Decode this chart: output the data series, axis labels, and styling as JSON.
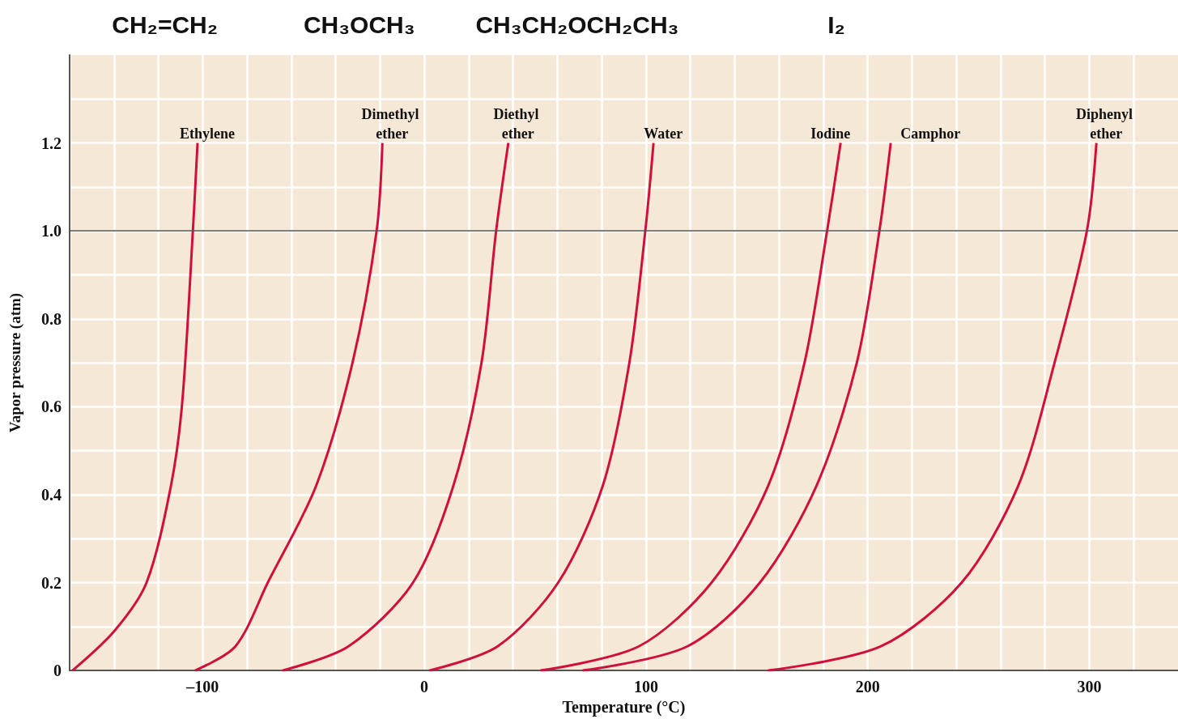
{
  "chart_data": {
    "type": "line",
    "xlabel": "Temperature (°C)",
    "ylabel": "Vapor pressure (atm)",
    "xlim": [
      -160,
      340
    ],
    "ylim": [
      0,
      1.4
    ],
    "xticks": [
      {
        "value": -160,
        "label": null
      },
      {
        "value": -140,
        "label": null
      },
      {
        "value": -120,
        "label": null
      },
      {
        "value": -100,
        "label": "–100"
      },
      {
        "value": -80,
        "label": null
      },
      {
        "value": -60,
        "label": null
      },
      {
        "value": -40,
        "label": null
      },
      {
        "value": -20,
        "label": null
      },
      0,
      {
        "value": 20,
        "label": null
      },
      {
        "value": 40,
        "label": null
      },
      {
        "value": 60,
        "label": null
      },
      {
        "value": 80,
        "label": null
      },
      100,
      {
        "value": 120,
        "label": null
      },
      {
        "value": 140,
        "label": null
      },
      {
        "value": 160,
        "label": null
      },
      {
        "value": 180,
        "label": null
      },
      200,
      {
        "value": 220,
        "label": null
      },
      {
        "value": 240,
        "label": null
      },
      {
        "value": 260,
        "label": null
      },
      {
        "value": 280,
        "label": null
      },
      300,
      {
        "value": 320,
        "label": null
      }
    ],
    "yticks": [
      0,
      {
        "value": 0.1,
        "label": null
      },
      0.2,
      {
        "value": 0.3,
        "label": null
      },
      0.4,
      {
        "value": 0.5,
        "label": null
      },
      0.6,
      {
        "value": 0.7,
        "label": null
      },
      0.8,
      {
        "value": 0.9,
        "label": null
      },
      {
        "value": 1,
        "label": "1.0"
      },
      {
        "value": 1.1,
        "label": null
      },
      1.2,
      {
        "value": 1.3,
        "label": null
      }
    ],
    "grid": true,
    "marker": "none",
    "legend": false,
    "ref_lines": [
      {
        "axis": "y",
        "value": 1,
        "color": "#555555"
      }
    ],
    "annotations": [
      "CH₂=CH₂",
      "CH₃OCH₃",
      "CH₃CH₂OCH₂CH₃",
      "I₂"
    ],
    "series": [
      {
        "name": "Ethylene",
        "color": "#d0103a",
        "x": [
          -158.7,
          -139.8,
          -125.3,
          -114.3,
          -109.2,
          -104.4,
          -102.3
        ],
        "values": [
          0,
          0.09,
          0.2,
          0.42,
          0.61,
          1.0,
          1.2
        ]
      },
      {
        "name": "Dimethyl ether",
        "color": "#d0103a",
        "x": [
          -103.4,
          -85.2,
          -70.6,
          -48.8,
          -32.4,
          -21.5,
          -18.9
        ],
        "values": [
          0,
          0.055,
          0.2,
          0.42,
          0.7,
          1.0,
          1.2
        ]
      },
      {
        "name": "Diethyl ether",
        "color": "#d0103a",
        "x": [
          -64,
          -34.2,
          -5.1,
          13.1,
          25.8,
          32.4,
          37.9
        ],
        "values": [
          0,
          0.055,
          0.2,
          0.42,
          0.7,
          1.0,
          1.2
        ]
      },
      {
        "name": "Water",
        "color": "#d0103a",
        "x": [
          2.2,
          33.1,
          60.4,
          80.5,
          92.5,
          99.7,
          103.4
        ],
        "values": [
          0,
          0.055,
          0.2,
          0.42,
          0.7,
          1.0,
          1.2
        ]
      },
      {
        "name": "Iodine",
        "color": "#d0103a",
        "x": [
          52.4,
          96.8,
          129.6,
          155.1,
          171.5,
          181.7,
          187.8
        ],
        "values": [
          0,
          0.055,
          0.2,
          0.42,
          0.7,
          1.0,
          1.2
        ]
      },
      {
        "name": "Camphor",
        "color": "#d0103a",
        "x": [
          71.4,
          118.7,
          151.4,
          176.9,
          195.1,
          205.3,
          210.4
        ],
        "values": [
          0,
          0.055,
          0.2,
          0.42,
          0.7,
          1.0,
          1.2
        ]
      },
      {
        "name": "Diphenyl ether",
        "color": "#d0103a",
        "x": [
          155.1,
          206,
          242.4,
          267.9,
          284.3,
          298.9,
          303.2
        ],
        "values": [
          0,
          0.055,
          0.2,
          0.42,
          0.7,
          1.0,
          1.2
        ]
      }
    ]
  }
}
